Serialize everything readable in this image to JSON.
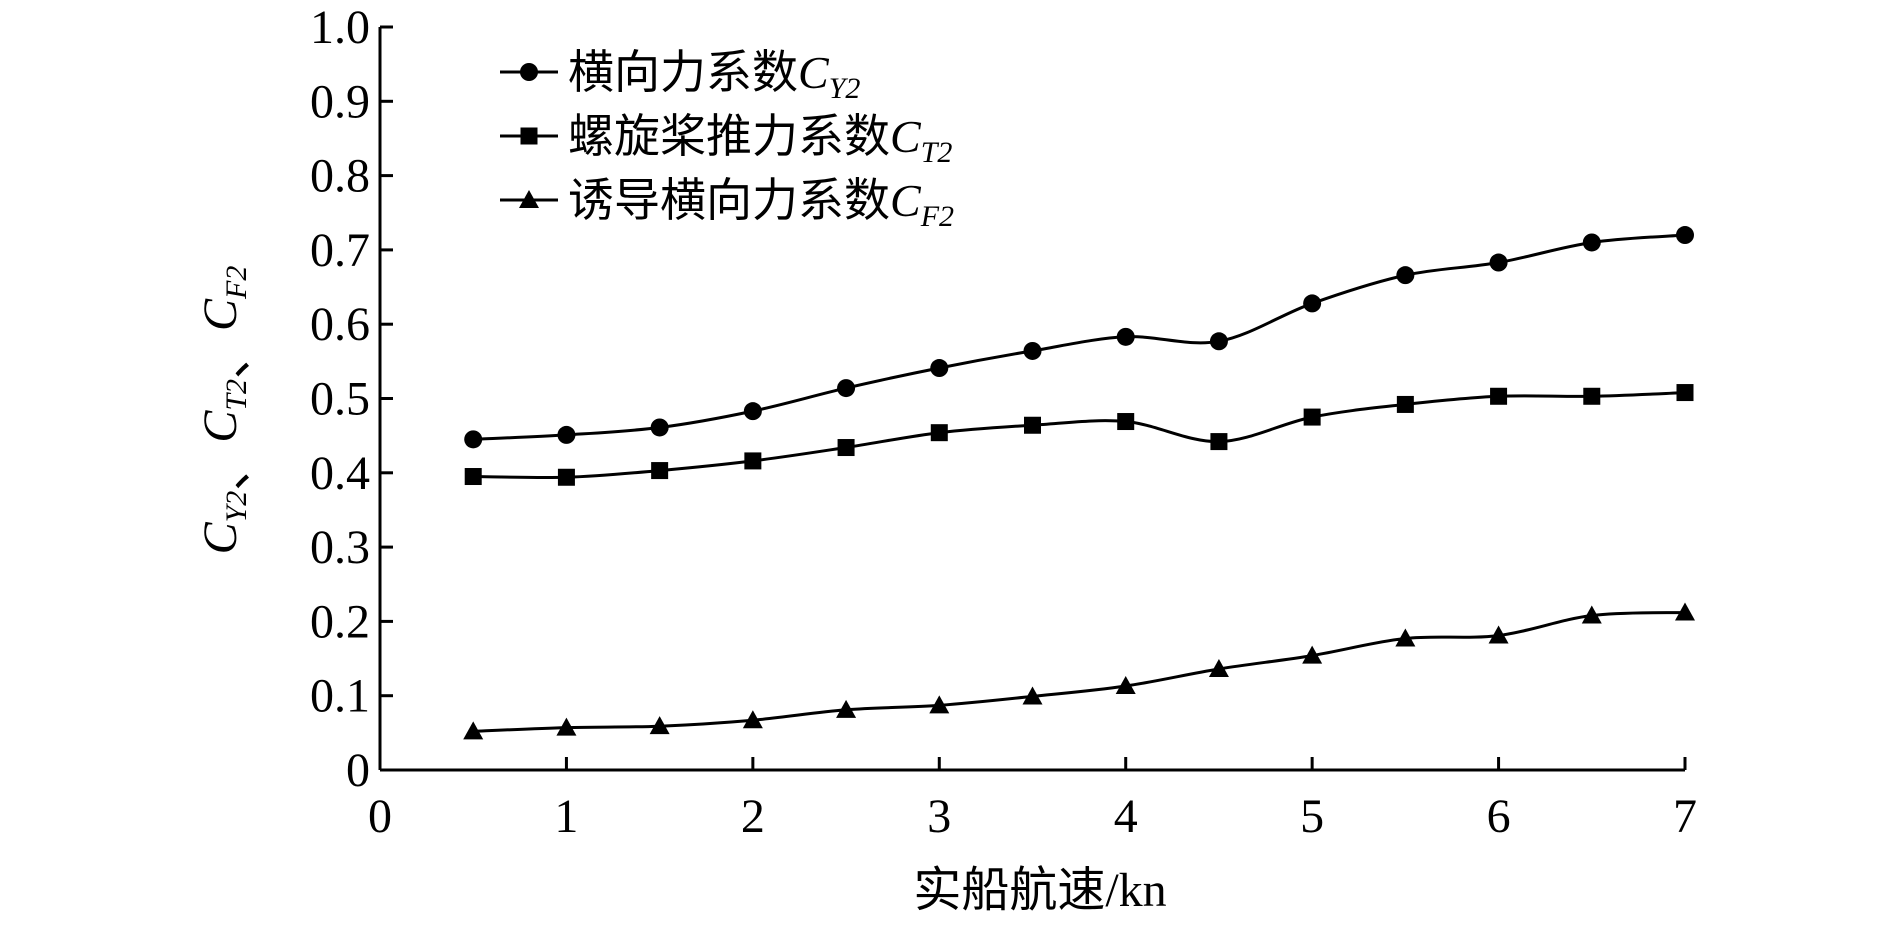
{
  "chart_data": {
    "type": "line",
    "xlabel": "实船航速/kn",
    "ylabel": {
      "parts": [
        {
          "sym": "C",
          "sub": "Y2"
        },
        {
          "sep": "、"
        },
        {
          "sym": "C",
          "sub": "T2"
        },
        {
          "sep": "、"
        },
        {
          "sym": "C",
          "sub": "F2"
        }
      ]
    },
    "xlim": [
      0,
      7
    ],
    "ylim": [
      0,
      1.0
    ],
    "x_ticks": [
      "0",
      "1",
      "2",
      "3",
      "4",
      "5",
      "6",
      "7"
    ],
    "y_ticks": [
      "0",
      "0.1",
      "0.2",
      "0.3",
      "0.4",
      "0.5",
      "0.6",
      "0.7",
      "0.8",
      "0.9",
      "1.0"
    ],
    "grid": false,
    "legend_position": "top-left",
    "x": [
      0.5,
      1,
      1.5,
      2,
      2.5,
      3,
      3.5,
      4,
      4.5,
      5,
      5.5,
      6,
      6.5,
      7
    ],
    "series": [
      {
        "name": "横向力系数",
        "symbol": "C",
        "symbol_sub": "Y2",
        "marker": "circle",
        "values": [
          0.445,
          0.451,
          0.461,
          0.483,
          0.514,
          0.541,
          0.564,
          0.583,
          0.577,
          0.628,
          0.666,
          0.683,
          0.71,
          0.72
        ]
      },
      {
        "name": "螺旋桨推力系数",
        "symbol": "C",
        "symbol_sub": "T2",
        "marker": "square",
        "values": [
          0.395,
          0.394,
          0.403,
          0.416,
          0.434,
          0.454,
          0.464,
          0.469,
          0.442,
          0.475,
          0.492,
          0.503,
          0.503,
          0.508
        ]
      },
      {
        "name": "诱导横向力系数",
        "symbol": "C",
        "symbol_sub": "F2",
        "marker": "triangle",
        "values": [
          0.052,
          0.057,
          0.059,
          0.067,
          0.081,
          0.087,
          0.099,
          0.113,
          0.136,
          0.154,
          0.177,
          0.181,
          0.208,
          0.212
        ]
      }
    ]
  }
}
